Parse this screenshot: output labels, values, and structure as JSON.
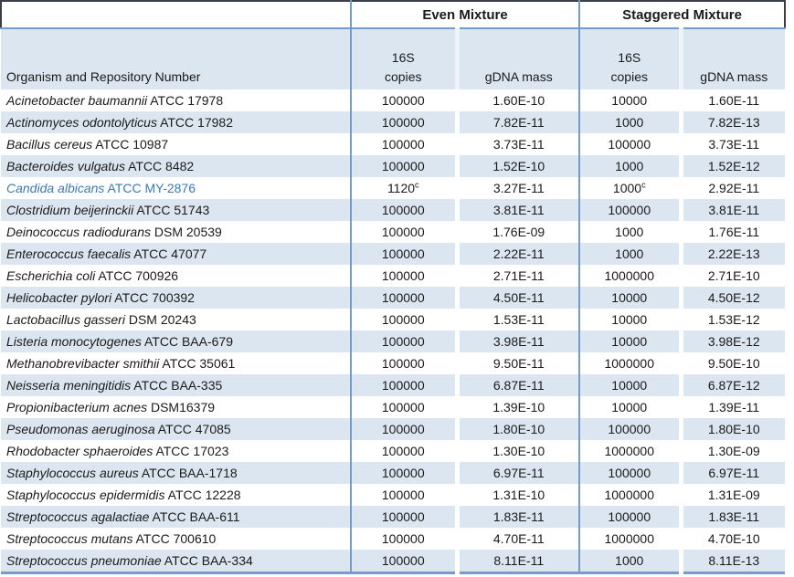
{
  "colors": {
    "band": "#dce6f1",
    "border_blue": "#749bcb",
    "border_dark": "#3a3f47",
    "highlight_text": "#3b79ba"
  },
  "table": {
    "group_headers": {
      "even": "Even Mixture",
      "staggered": "Staggered Mixture"
    },
    "organism_header": "Organism and Repository Number",
    "sub_headers": {
      "copies_line1": "16S",
      "copies_line2": "copies",
      "gdna": "gDNA mass"
    },
    "rows": [
      {
        "name": "Acinetobacter baumannii",
        "strain": "ATCC 17978",
        "even_copies": "100000",
        "even_gdna": "1.60E-10",
        "stag_copies": "10000",
        "stag_gdna": "1.60E-11"
      },
      {
        "name": "Actinomyces odontolyticus",
        "strain": "ATCC 17982",
        "even_copies": "100000",
        "even_gdna": "7.82E-11",
        "stag_copies": "1000",
        "stag_gdna": "7.82E-13"
      },
      {
        "name": "Bacillus cereus",
        "strain": "ATCC 10987",
        "even_copies": "100000",
        "even_gdna": "3.73E-11",
        "stag_copies": "100000",
        "stag_gdna": "3.73E-11"
      },
      {
        "name": "Bacteroides vulgatus",
        "strain": "ATCC 8482",
        "even_copies": "100000",
        "even_gdna": "1.52E-10",
        "stag_copies": "1000",
        "stag_gdna": "1.52E-12"
      },
      {
        "name": "Candida albicans",
        "strain": "ATCC MY-2876",
        "even_copies": "1120",
        "even_sup": "c",
        "even_gdna": "3.27E-11",
        "stag_copies": "1000",
        "stag_sup": "c",
        "stag_gdna": "2.92E-11",
        "highlight": true
      },
      {
        "name": "Clostridium beijerinckii",
        "strain": "ATCC 51743",
        "even_copies": "100000",
        "even_gdna": "3.81E-11",
        "stag_copies": "100000",
        "stag_gdna": "3.81E-11"
      },
      {
        "name": "Deinococcus radiodurans",
        "strain": "DSM 20539",
        "even_copies": "100000",
        "even_gdna": "1.76E-09",
        "stag_copies": "1000",
        "stag_gdna": "1.76E-11"
      },
      {
        "name": "Enterococcus faecalis",
        "strain": "ATCC 47077",
        "even_copies": "100000",
        "even_gdna": "2.22E-11",
        "stag_copies": "1000",
        "stag_gdna": "2.22E-13"
      },
      {
        "name": "Escherichia coli",
        "strain": "ATCC 700926",
        "even_copies": "100000",
        "even_gdna": "2.71E-11",
        "stag_copies": "1000000",
        "stag_gdna": "2.71E-10"
      },
      {
        "name": "Helicobacter pylori",
        "strain": "ATCC 700392",
        "even_copies": "100000",
        "even_gdna": "4.50E-11",
        "stag_copies": "10000",
        "stag_gdna": "4.50E-12"
      },
      {
        "name": "Lactobacillus gasseri",
        "strain": "DSM 20243",
        "even_copies": "100000",
        "even_gdna": "1.53E-11",
        "stag_copies": "10000",
        "stag_gdna": "1.53E-12"
      },
      {
        "name": "Listeria monocytogenes",
        "strain": "ATCC BAA-679",
        "even_copies": "100000",
        "even_gdna": "3.98E-11",
        "stag_copies": "10000",
        "stag_gdna": "3.98E-12"
      },
      {
        "name": "Methanobrevibacter smithii",
        "strain": "ATCC 35061",
        "even_copies": "100000",
        "even_gdna": "9.50E-11",
        "stag_copies": "1000000",
        "stag_gdna": "9.50E-10"
      },
      {
        "name": "Neisseria meningitidis",
        "strain": "ATCC BAA-335",
        "even_copies": "100000",
        "even_gdna": "6.87E-11",
        "stag_copies": "10000",
        "stag_gdna": "6.87E-12"
      },
      {
        "name": "Propionibacterium acnes",
        "strain": "DSM16379",
        "even_copies": "100000",
        "even_gdna": "1.39E-10",
        "stag_copies": "10000",
        "stag_gdna": "1.39E-11"
      },
      {
        "name": "Pseudomonas aeruginosa",
        "strain": "ATCC 47085",
        "even_copies": "100000",
        "even_gdna": "1.80E-10",
        "stag_copies": "100000",
        "stag_gdna": "1.80E-10"
      },
      {
        "name": "Rhodobacter sphaeroides",
        "strain": "ATCC 17023",
        "even_copies": "100000",
        "even_gdna": "1.30E-10",
        "stag_copies": "1000000",
        "stag_gdna": "1.30E-09"
      },
      {
        "name": "Staphylococcus aureus",
        "strain": "ATCC BAA-1718",
        "even_copies": "100000",
        "even_gdna": "6.97E-11",
        "stag_copies": "100000",
        "stag_gdna": "6.97E-11"
      },
      {
        "name": "Staphylococcus epidermidis",
        "strain": "ATCC 12228",
        "even_copies": "100000",
        "even_gdna": "1.31E-10",
        "stag_copies": "1000000",
        "stag_gdna": "1.31E-09"
      },
      {
        "name": "Streptococcus agalactiae",
        "strain": "ATCC BAA-611",
        "even_copies": "100000",
        "even_gdna": "1.83E-11",
        "stag_copies": "100000",
        "stag_gdna": "1.83E-11"
      },
      {
        "name": "Streptococcus mutans",
        "strain": "ATCC 700610",
        "even_copies": "100000",
        "even_gdna": "4.70E-11",
        "stag_copies": "1000000",
        "stag_gdna": "4.70E-10"
      },
      {
        "name": "Streptococcus pneumoniae",
        "strain": "ATCC BAA-334",
        "even_copies": "100000",
        "even_gdna": "8.11E-11",
        "stag_copies": "1000",
        "stag_gdna": "8.11E-13"
      }
    ]
  }
}
